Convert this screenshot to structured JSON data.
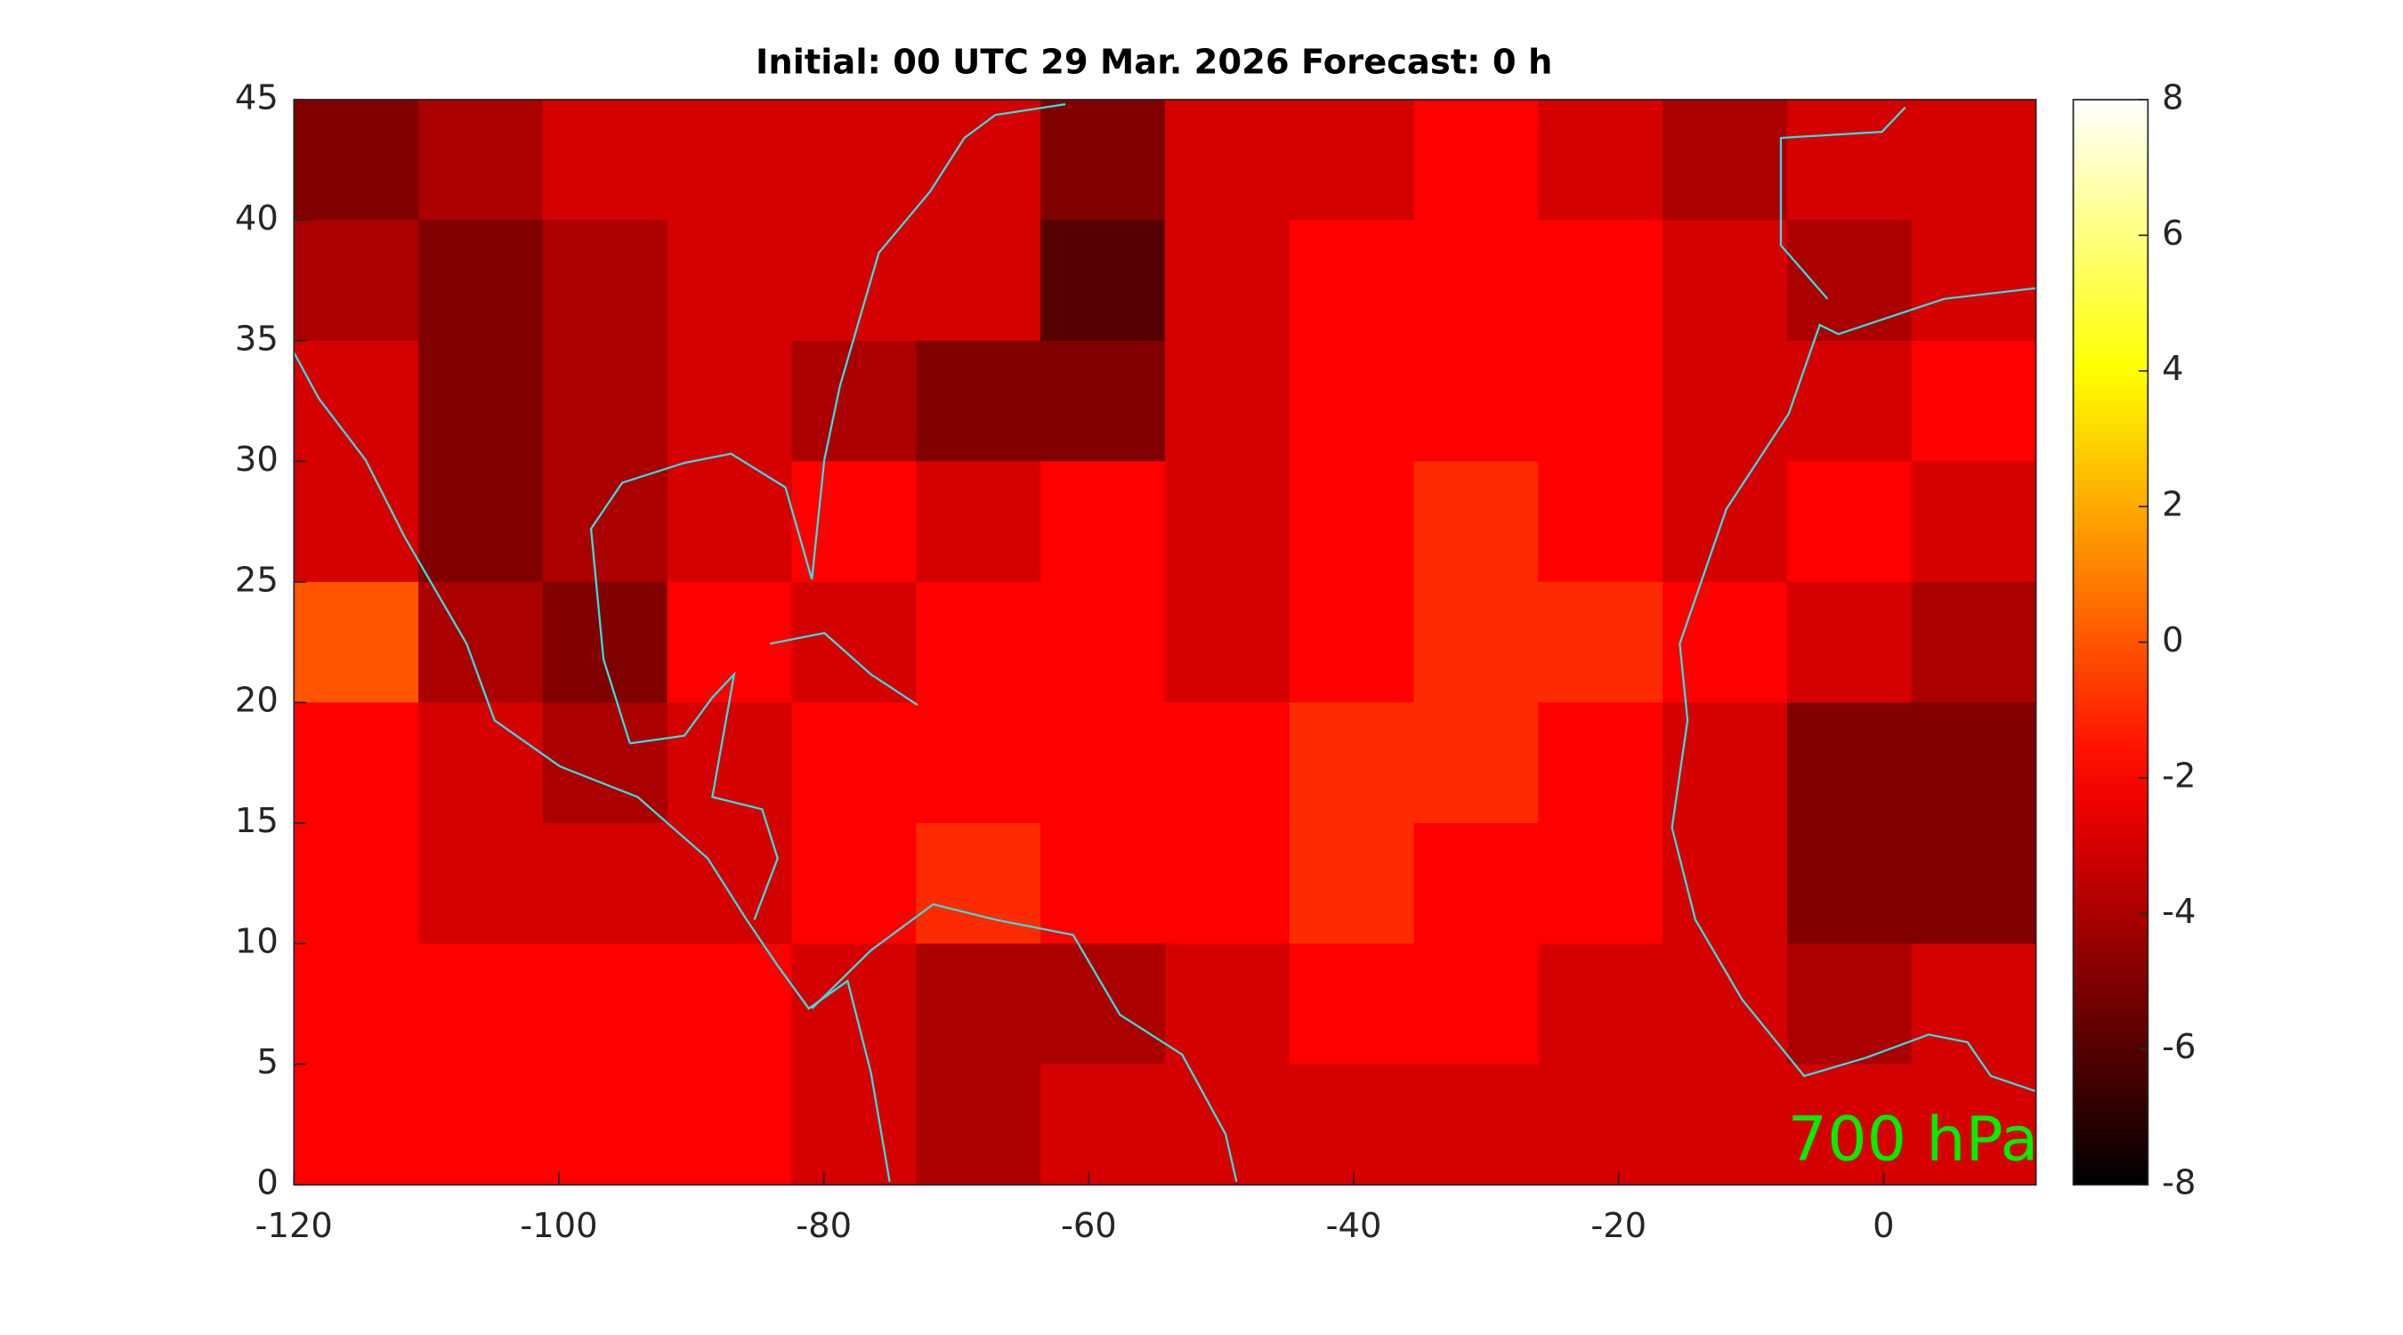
{
  "chart_data": {
    "type": "heatmap",
    "title": "Initial: 00 UTC 29 Mar. 2026 Forecast: 0 h",
    "annotation": "700 hPa",
    "annotation_color": "#00ee00",
    "colormap": "hot",
    "xlim": [
      -120,
      11.5
    ],
    "ylim": [
      0,
      45
    ],
    "xticks": [
      -120,
      -100,
      -80,
      -60,
      -40,
      -20,
      0
    ],
    "yticks": [
      0,
      5,
      10,
      15,
      20,
      25,
      30,
      35,
      40,
      45
    ],
    "clim": [
      -8,
      8
    ],
    "cticks": [
      -8,
      -6,
      -4,
      -2,
      0,
      2,
      4,
      6,
      8
    ],
    "coastline_color": "#33e0e6",
    "field": {
      "values": [
        [
          -5,
          -4,
          -3,
          -3,
          -3,
          -3,
          -5,
          -3,
          -3,
          -2,
          -3,
          -4,
          -3,
          -3
        ],
        [
          -4,
          -5,
          -4,
          -3,
          -3,
          -3,
          -6,
          -3,
          -2,
          -2,
          -2,
          -3,
          -4,
          -3
        ],
        [
          -3,
          -5,
          -4,
          -3,
          -4,
          -5,
          -5,
          -3,
          -2,
          -2,
          -2,
          -3,
          -3,
          -2
        ],
        [
          -3,
          -5,
          -4,
          -3,
          -2,
          -3,
          -2,
          -3,
          -2,
          -1,
          -2,
          -3,
          -2,
          -3
        ],
        [
          0,
          -4,
          -5,
          -2,
          -3,
          -2,
          -2,
          -3,
          -2,
          -1,
          -1,
          -2,
          -3,
          -4
        ],
        [
          -2,
          -3,
          -4,
          -3,
          -2,
          -2,
          -2,
          -2,
          -1,
          -1,
          -2,
          -3,
          -5,
          -5
        ],
        [
          -2,
          -3,
          -3,
          -3,
          -2,
          -1,
          -2,
          -2,
          -1,
          -2,
          -2,
          -3,
          -5,
          -5
        ],
        [
          -2,
          -2,
          -2,
          -2,
          -3,
          -4,
          -4,
          -3,
          -2,
          -2,
          -3,
          -3,
          -4,
          -3
        ],
        [
          -2,
          -2,
          -2,
          -2,
          -3,
          -4,
          -3,
          -3,
          -3,
          -3,
          -3,
          -3,
          -3,
          -3
        ]
      ]
    }
  }
}
